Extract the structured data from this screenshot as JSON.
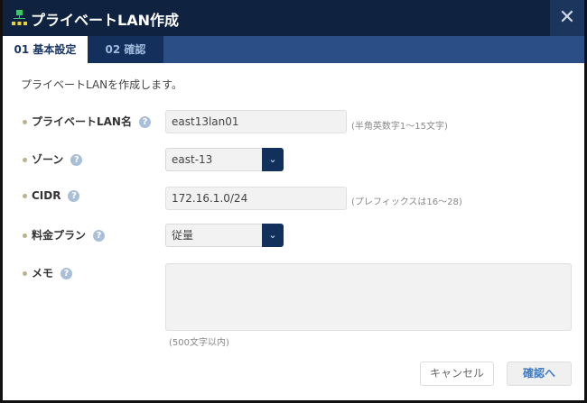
{
  "dialog": {
    "title": "プライベートLAN作成",
    "close": "✕"
  },
  "tabs": [
    {
      "label": "01 基本設定",
      "active": true
    },
    {
      "label": "02 確認",
      "active": false
    }
  ],
  "intro": "プライベートLANを作成します。",
  "fields": {
    "name": {
      "label": "プライベートLAN名",
      "value": "east13lan01",
      "hint": "(半角英数字1〜15文字)"
    },
    "zone": {
      "label": "ゾーン",
      "value": "east-13"
    },
    "cidr": {
      "label": "CIDR",
      "value": "172.16.1.0/24",
      "hint": "(プレフィックスは16〜28)"
    },
    "plan": {
      "label": "料金プラン",
      "value": "従量"
    },
    "memo": {
      "label": "メモ",
      "value": "",
      "hint": "(500文字以内)"
    }
  },
  "help_glyph": "?",
  "chevron": "⌄",
  "buttons": {
    "cancel": "キャンセル",
    "confirm": "確認へ"
  },
  "colors": {
    "titlebar": "#0f2240",
    "accent": "#12305c",
    "confirm_text": "#3b7cc4"
  }
}
